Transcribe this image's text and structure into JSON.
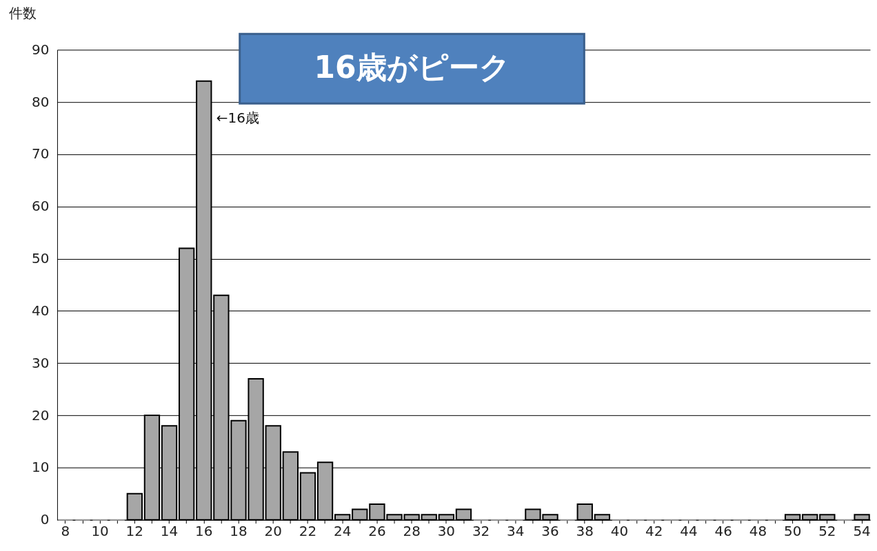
{
  "chart_data": {
    "type": "bar",
    "title": "16歳がピーク",
    "ylabel": "件数",
    "categories": [
      "8",
      null,
      "10",
      null,
      "12",
      null,
      "14",
      null,
      "16",
      null,
      "18",
      null,
      "20",
      null,
      "22",
      null,
      "24",
      null,
      "26",
      null,
      "28",
      null,
      "30",
      null,
      "32",
      null,
      "34",
      null,
      "36",
      null,
      "38",
      null,
      "40",
      null,
      "42",
      null,
      "44",
      null,
      "46",
      null,
      "48",
      null,
      "50",
      null,
      "52",
      null,
      "54"
    ],
    "values": [
      0,
      0,
      0,
      0,
      5,
      20,
      18,
      52,
      84,
      43,
      19,
      27,
      18,
      13,
      9,
      11,
      1,
      2,
      3,
      1,
      1,
      1,
      1,
      2,
      0,
      0,
      0,
      2,
      1,
      0,
      3,
      1,
      0,
      0,
      0,
      0,
      0,
      0,
      0,
      0,
      0,
      0,
      1,
      1,
      1,
      0,
      1
    ],
    "color": "#a6a6a6",
    "ylim": [
      0,
      90
    ],
    "yticks": [
      0,
      10,
      20,
      30,
      40,
      50,
      60,
      70,
      80,
      90
    ],
    "grid": "y",
    "annotations": [
      "←16歳"
    ]
  }
}
